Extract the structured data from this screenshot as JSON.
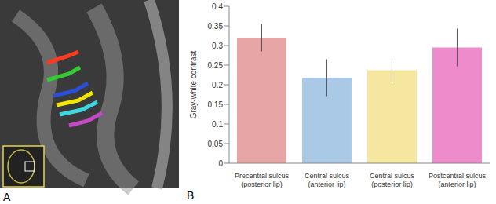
{
  "image_panel": {
    "label": "A"
  },
  "chart_data": {
    "type": "bar",
    "panel_label": "B",
    "y_label": "Gray-white contrast",
    "categories": [
      "Precentral sulcus (posterior lip)",
      "Central sulcus (anterior lip)",
      "Central sulcus (posterior lip)",
      "Postcentral sulcus (anterior lip)"
    ],
    "values": [
      0.32,
      0.218,
      0.237,
      0.295
    ],
    "errors": [
      0.035,
      0.047,
      0.03,
      0.048
    ],
    "colors": [
      "#e8a5a5",
      "#a9c9e6",
      "#f6e7a0",
      "#ee8ccb"
    ],
    "ylim": [
      0,
      0.4
    ],
    "yticks": [
      0,
      0.05,
      0.1,
      0.15,
      0.2,
      0.25,
      0.3,
      0.35,
      0.4
    ],
    "grid": false
  }
}
